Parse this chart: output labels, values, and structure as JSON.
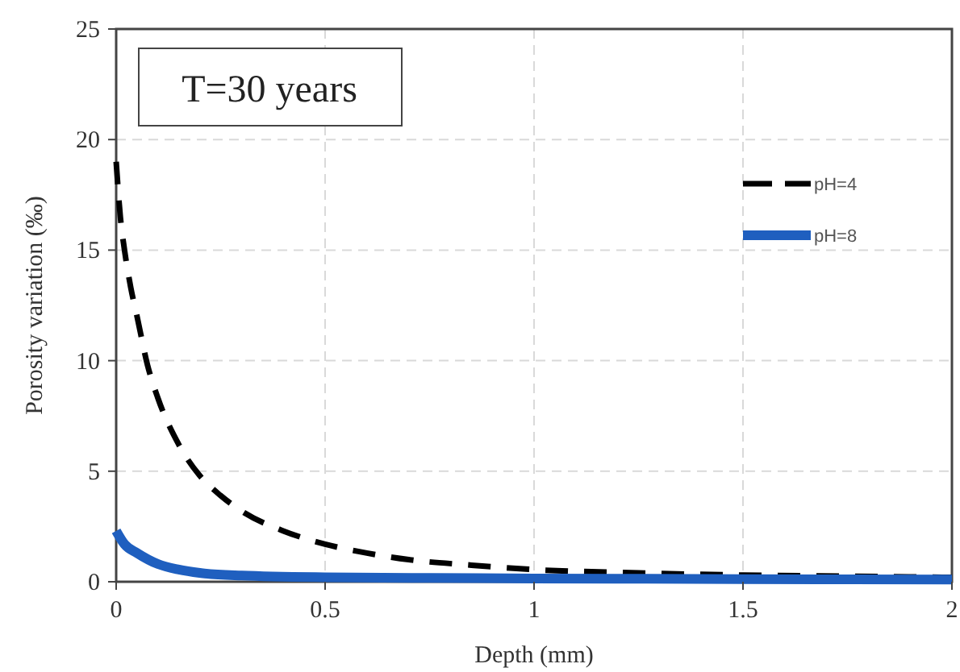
{
  "chart_data": {
    "type": "line",
    "xlabel": "Depth (mm)",
    "ylabel": "Porosity variation (‰)",
    "annotations": [
      "T=30 years"
    ],
    "xlim": [
      0,
      2
    ],
    "xticks": [
      0,
      0.5,
      1,
      1.5,
      2
    ],
    "ylim": [
      0,
      25
    ],
    "yticks": [
      0,
      5,
      10,
      15,
      20,
      25
    ],
    "grid": true,
    "legend": "top right",
    "series": [
      {
        "name": "pH=4",
        "color": "#000000",
        "line_style": "dashed",
        "x": [
          0,
          0.01,
          0.02,
          0.035,
          0.05,
          0.075,
          0.1,
          0.15,
          0.2,
          0.25,
          0.3,
          0.4,
          0.5,
          0.6,
          0.7,
          0.85,
          1,
          1.25,
          1.5,
          1.75,
          2
        ],
        "values": [
          19,
          16.5,
          15,
          13.3,
          12,
          9.8,
          8.3,
          6.2,
          4.8,
          3.9,
          3.2,
          2.3,
          1.7,
          1.3,
          1.0,
          0.75,
          0.55,
          0.4,
          0.3,
          0.25,
          0.2
        ]
      },
      {
        "name": "pH=8",
        "color": "#1f5fbf",
        "line_style": "solid",
        "x": [
          0,
          0.02,
          0.05,
          0.1,
          0.15,
          0.2,
          0.3,
          0.5,
          0.75,
          1,
          1.5,
          2
        ],
        "values": [
          2.3,
          1.7,
          1.3,
          0.8,
          0.55,
          0.4,
          0.28,
          0.2,
          0.17,
          0.15,
          0.12,
          0.1
        ]
      }
    ]
  }
}
